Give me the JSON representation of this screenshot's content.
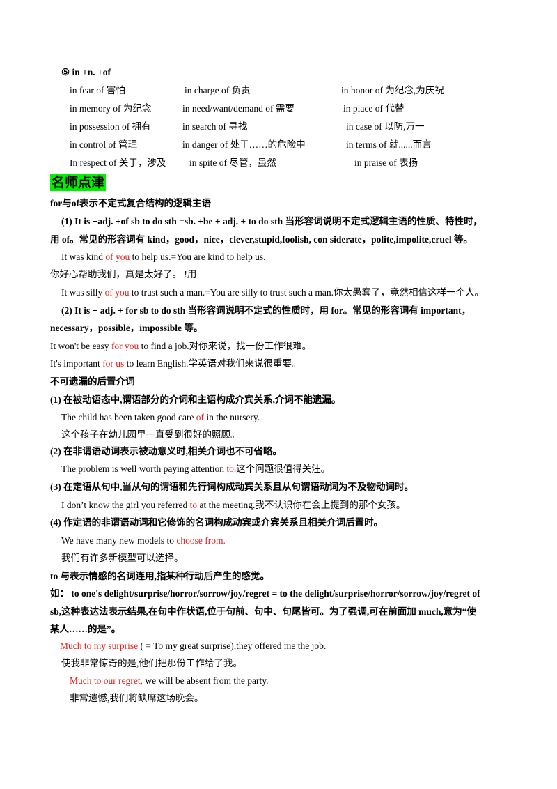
{
  "section": {
    "heading": "⑤ in +n. +of",
    "phrases": [
      [
        "in fear of 害怕",
        "in charge of 负责",
        "in honor of 为纪念,为庆祝"
      ],
      [
        "in memory of 为纪念",
        "in need/want/demand of 需要",
        "in place of 代替"
      ],
      [
        "in possession of 拥有",
        "in search of 寻找",
        "in case of 以防,万一"
      ],
      [
        "in control of 管理",
        "in danger of 处于……的危险中",
        "in terms of 就......而言"
      ],
      [
        "In respect of 关于，涉及",
        "in spite of 尽管，虽然",
        "in praise of 表扬"
      ]
    ]
  },
  "tips": {
    "badge": "名师点津",
    "lines": [
      {
        "text": "for与of表示不定式复合结构的逻辑主语"
      },
      {
        "text": "(1) It is +adj. +of sb to do sth =sb. +be + adj. + to do sth 当形容词说明不定式逻辑主语的性质、特性时，"
      },
      {
        "text": "用 of。常见的形容词有 kind，good，nice，clever,stupid,foolish, con siderate，polite,impolite,cruel 等。"
      },
      {
        "before": "It was kind ",
        "red": "of you",
        "after": " to help us.=You are kind to help us."
      },
      {
        "text": "你好心帮助我们，真是太好了。 !用"
      },
      {
        "before": "It was silly ",
        "red": "of you",
        "after": " to trust such a man.=You are silly to trust such a man.你太愚蠢了，竟然相信这样一个人。"
      },
      {
        "text": "(2) It is + adj. + for sb to do sth 当形容词说明不定式的性质时，用 for。常见的形容词有 important，"
      },
      {
        "text": "necessary，possible，impossible 等。"
      },
      {
        "before": "It won't be easy ",
        "red": "for you",
        "after": " to find a job.对你来说，找一份工作很难。"
      },
      {
        "before": "It's important ",
        "red": "for us",
        "after": " to learn English.学英语对我们来说很重要。"
      },
      {
        "text": "不可遗漏的后置介词"
      },
      {
        "text": "(1) 在被动语态中,谓语部分的介词和主语构成介宾关系,介词不能遗漏。"
      },
      {
        "before": "The child has been taken good care ",
        "red": "of",
        "after": " in the nursery."
      },
      {
        "text": "这个孩子在幼儿园里一直受到很好的照顾。"
      },
      {
        "text": "(2) 在非谓语动词表示被动意义时,相关介词也不可省略。"
      },
      {
        "before": "The problem is well worth paying attention ",
        "red": "to",
        "after": ".这个问题很值得关注。"
      },
      {
        "text": "(3) 在定语从句中,当从句的谓语和先行词构成动宾关系且从句谓语动词为不及物动词时。"
      },
      {
        "before": "I don’t know the girl you referred ",
        "red": "to",
        "after": " at the meeting.我不认识你在会上提到的那个女孩。"
      },
      {
        "text": "(4) 作定语的非谓语动词和它修饰的名词构成动宾或介宾关系且相关介词后置时。"
      },
      {
        "before": "We have many new models to ",
        "red": "choose from."
      },
      {
        "text": "我们有许多新模型可以选择。"
      },
      {
        "text": "to 与表示情感的名词连用,指某种行动后产生的感觉。"
      },
      {
        "text": "如： to one's delight/surprise/horror/sorrow/joy/regret = to the delight/surprise/horror/sorrow/joy/regret of"
      },
      {
        "text": "sb,这种表达法表示结果,在句中作状语,位于句前、句中、句尾皆可。为了强调,可在前面加 much,意为“使"
      },
      {
        "text": "某人……的是”。"
      },
      {
        "red": "Much to my surprise",
        "after": " ( = To my great surprise),they offered me the job."
      },
      {
        "text": "使我非常惊奇的是,他们把那份工作给了我。"
      },
      {
        "red": "Much to our regret,",
        "after": " we will be absent from the party."
      },
      {
        "text": "非常遗憾,我们将缺席这场晚会。"
      }
    ]
  }
}
